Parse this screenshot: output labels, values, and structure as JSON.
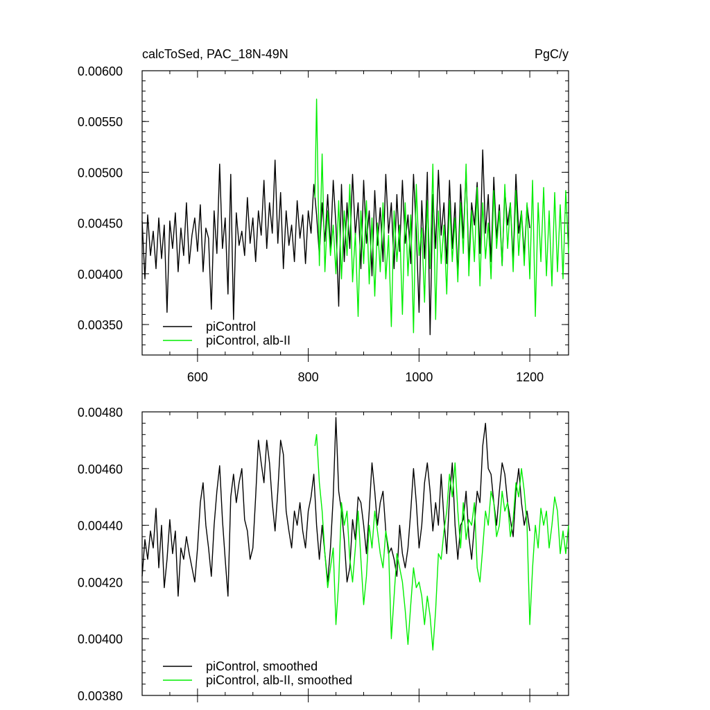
{
  "chart_data": [
    {
      "type": "line",
      "title": "calcToSed, PAC_18N-49N",
      "units": "PgC/y",
      "xlabel": "",
      "ylabel": "",
      "xlim": [
        500,
        1270
      ],
      "ylim": [
        0.0032,
        0.006
      ],
      "xticks": [
        600,
        800,
        1000,
        1200
      ],
      "yticks": [
        0.0035,
        0.004,
        0.0045,
        0.005,
        0.0055,
        0.006
      ],
      "ytick_labels": [
        "0.00350",
        "0.00400",
        "0.00450",
        "0.00500",
        "0.00550",
        "0.00600"
      ],
      "grid": false,
      "legend_position": "bottom-left",
      "series": [
        {
          "name": "piControl",
          "color": "#000000",
          "x": [
            500,
            505,
            510,
            515,
            520,
            525,
            530,
            535,
            540,
            545,
            550,
            555,
            560,
            565,
            570,
            575,
            580,
            585,
            590,
            595,
            600,
            605,
            610,
            615,
            620,
            625,
            630,
            635,
            640,
            645,
            650,
            655,
            660,
            665,
            670,
            675,
            680,
            685,
            690,
            695,
            700,
            705,
            710,
            715,
            720,
            725,
            730,
            735,
            740,
            745,
            750,
            755,
            760,
            765,
            770,
            775,
            780,
            785,
            790,
            795,
            800,
            805,
            810,
            815,
            820,
            825,
            830,
            835,
            840,
            845,
            850,
            855,
            860,
            865,
            870,
            875,
            880,
            885,
            890,
            895,
            900,
            905,
            910,
            915,
            920,
            925,
            930,
            935,
            940,
            945,
            950,
            955,
            960,
            965,
            970,
            975,
            980,
            985,
            990,
            995,
            1000,
            1005,
            1010,
            1015,
            1020,
            1025,
            1030,
            1035,
            1040,
            1045,
            1050,
            1055,
            1060,
            1065,
            1070,
            1075,
            1080,
            1085,
            1090,
            1095,
            1100,
            1105,
            1110,
            1115,
            1120,
            1125,
            1130,
            1135,
            1140,
            1145,
            1150,
            1155,
            1160,
            1165,
            1170,
            1175,
            1180,
            1185,
            1190,
            1195,
            1200
          ],
          "y": [
            0.00452,
            0.00395,
            0.00458,
            0.00418,
            0.00442,
            0.00405,
            0.00455,
            0.00415,
            0.00448,
            0.00362,
            0.00452,
            0.00425,
            0.0046,
            0.00402,
            0.00445,
            0.00418,
            0.0047,
            0.0041,
            0.00438,
            0.00455,
            0.00422,
            0.00468,
            0.00402,
            0.00445,
            0.00435,
            0.00365,
            0.00462,
            0.0042,
            0.00508,
            0.00425,
            0.00455,
            0.0038,
            0.00498,
            0.00355,
            0.0046,
            0.00428,
            0.00442,
            0.00418,
            0.00475,
            0.0043,
            0.00455,
            0.00412,
            0.00462,
            0.00438,
            0.00492,
            0.00425,
            0.0047,
            0.0044,
            0.00512,
            0.0043,
            0.0048,
            0.00405,
            0.00462,
            0.00428,
            0.00448,
            0.00412,
            0.00472,
            0.00435,
            0.00458,
            0.0041,
            0.00462,
            0.0044,
            0.00488,
            0.00458,
            0.00418,
            0.0047,
            0.00432,
            0.00478,
            0.00425,
            0.00492,
            0.00448,
            0.00368,
            0.00488,
            0.00412,
            0.0047,
            0.00425,
            0.00498,
            0.00438,
            0.0047,
            0.00405,
            0.00492,
            0.0043,
            0.00462,
            0.00398,
            0.00482,
            0.00428,
            0.00465,
            0.00412,
            0.00498,
            0.0044,
            0.0047,
            0.00405,
            0.00478,
            0.00422,
            0.00492,
            0.0043,
            0.00458,
            0.0041,
            0.00498,
            0.00442,
            0.00362,
            0.00472,
            0.00415,
            0.005,
            0.0034,
            0.00478,
            0.00425,
            0.00502,
            0.00438,
            0.0047,
            0.0041,
            0.00492,
            0.00425,
            0.0047,
            0.00398,
            0.00488,
            0.00435,
            0.00502,
            0.00412,
            0.0047,
            0.00448,
            0.0049,
            0.0042,
            0.00522,
            0.0044,
            0.00478,
            0.00412,
            0.00495,
            0.00435,
            0.00468,
            0.00408,
            0.00482,
            0.00448,
            0.0047,
            0.00412,
            0.00498,
            0.0044,
            0.00462,
            0.00418,
            0.00468,
            0.00445
          ]
        },
        {
          "name": "piControl, alb-II",
          "color": "#00ee00",
          "x": [
            812,
            815,
            820,
            825,
            830,
            835,
            840,
            845,
            850,
            855,
            860,
            865,
            870,
            875,
            880,
            885,
            890,
            895,
            900,
            905,
            910,
            915,
            920,
            925,
            930,
            935,
            940,
            945,
            950,
            955,
            960,
            965,
            970,
            975,
            980,
            985,
            990,
            995,
            1000,
            1005,
            1010,
            1015,
            1020,
            1025,
            1030,
            1035,
            1040,
            1045,
            1050,
            1055,
            1060,
            1065,
            1070,
            1075,
            1080,
            1085,
            1090,
            1095,
            1100,
            1105,
            1110,
            1115,
            1120,
            1125,
            1130,
            1135,
            1140,
            1145,
            1150,
            1155,
            1160,
            1165,
            1170,
            1175,
            1180,
            1185,
            1190,
            1195,
            1200,
            1205,
            1210,
            1215,
            1220,
            1225,
            1230,
            1235,
            1240,
            1245,
            1250,
            1255,
            1260,
            1265,
            1270
          ],
          "y": [
            0.00475,
            0.00572,
            0.00408,
            0.00518,
            0.00402,
            0.00462,
            0.00418,
            0.00448,
            0.004,
            0.00472,
            0.00395,
            0.00462,
            0.00418,
            0.00488,
            0.00392,
            0.0044,
            0.00358,
            0.00462,
            0.0041,
            0.00472,
            0.0039,
            0.00455,
            0.00378,
            0.0045,
            0.00402,
            0.0047,
            0.00395,
            0.00438,
            0.00348,
            0.00462,
            0.00412,
            0.00448,
            0.0036,
            0.0047,
            0.00398,
            0.00458,
            0.00342,
            0.00488,
            0.00418,
            0.00445,
            0.00372,
            0.00472,
            0.00405,
            0.00508,
            0.00355,
            0.00462,
            0.0041,
            0.00448,
            0.0038,
            0.00472,
            0.00412,
            0.00455,
            0.00392,
            0.0047,
            0.0042,
            0.00508,
            0.00398,
            0.00462,
            0.00412,
            0.00485,
            0.00388,
            0.0047,
            0.00415,
            0.0045,
            0.00395,
            0.00482,
            0.00425,
            0.00462,
            0.00408,
            0.00488,
            0.00425,
            0.0047,
            0.00402,
            0.00482,
            0.00418,
            0.00462,
            0.00408,
            0.0047,
            0.00395,
            0.00492,
            0.00358,
            0.0047,
            0.00412,
            0.00485,
            0.00398,
            0.00462,
            0.00388,
            0.0048,
            0.00402,
            0.00468,
            0.00395,
            0.00482,
            0.0042
          ]
        }
      ]
    },
    {
      "type": "line",
      "title": "",
      "units": "",
      "xlabel": "",
      "ylabel": "",
      "xlim": [
        500,
        1270
      ],
      "ylim": [
        0.0038,
        0.0048
      ],
      "xticks": [
        600,
        800,
        1000,
        1200
      ],
      "yticks": [
        0.0038,
        0.004,
        0.0042,
        0.0044,
        0.0046,
        0.0048
      ],
      "ytick_labels": [
        "0.00380",
        "0.00400",
        "0.00420",
        "0.00440",
        "0.00460",
        "0.00480"
      ],
      "grid": false,
      "legend_position": "bottom-left",
      "series": [
        {
          "name": "piControl, smoothed",
          "color": "#000000",
          "x": [
            500,
            505,
            510,
            515,
            520,
            525,
            530,
            535,
            540,
            545,
            550,
            555,
            560,
            565,
            570,
            575,
            580,
            585,
            590,
            595,
            600,
            605,
            610,
            615,
            620,
            625,
            630,
            635,
            640,
            645,
            650,
            655,
            660,
            665,
            670,
            675,
            680,
            685,
            690,
            695,
            700,
            705,
            710,
            715,
            720,
            725,
            730,
            735,
            740,
            745,
            750,
            755,
            760,
            765,
            770,
            775,
            780,
            785,
            790,
            795,
            800,
            805,
            810,
            815,
            820,
            825,
            830,
            835,
            840,
            845,
            850,
            855,
            860,
            865,
            870,
            875,
            880,
            885,
            890,
            895,
            900,
            905,
            910,
            915,
            920,
            925,
            930,
            935,
            940,
            945,
            950,
            955,
            960,
            965,
            970,
            975,
            980,
            985,
            990,
            995,
            1000,
            1005,
            1010,
            1015,
            1020,
            1025,
            1030,
            1035,
            1040,
            1045,
            1050,
            1055,
            1060,
            1065,
            1070,
            1075,
            1080,
            1085,
            1090,
            1095,
            1100,
            1105,
            1110,
            1115,
            1120,
            1125,
            1130,
            1135,
            1140,
            1145,
            1150,
            1155,
            1160,
            1165,
            1170,
            1175,
            1180,
            1185,
            1190,
            1195,
            1200
          ],
          "y": [
            0.00422,
            0.00435,
            0.00428,
            0.00438,
            0.00432,
            0.00446,
            0.00425,
            0.0044,
            0.00418,
            0.00428,
            0.00442,
            0.0043,
            0.00438,
            0.00415,
            0.00432,
            0.00428,
            0.00436,
            0.0043,
            0.00425,
            0.0042,
            0.00432,
            0.00448,
            0.00455,
            0.0044,
            0.00432,
            0.00422,
            0.0044,
            0.00452,
            0.00461,
            0.00442,
            0.00428,
            0.00415,
            0.0045,
            0.00458,
            0.00448,
            0.00455,
            0.0046,
            0.00442,
            0.00438,
            0.00428,
            0.00432,
            0.0045,
            0.0047,
            0.00462,
            0.00455,
            0.0047,
            0.00462,
            0.00448,
            0.00438,
            0.00452,
            0.0047,
            0.00465,
            0.00445,
            0.00438,
            0.00432,
            0.00445,
            0.0044,
            0.00448,
            0.00438,
            0.00432,
            0.00445,
            0.0045,
            0.00458,
            0.0044,
            0.00428,
            0.0044,
            0.0043,
            0.0042,
            0.00432,
            0.0045,
            0.00478,
            0.00452,
            0.00445,
            0.00435,
            0.0042,
            0.00425,
            0.00442,
            0.00435,
            0.0045,
            0.00448,
            0.0044,
            0.0043,
            0.00445,
            0.00462,
            0.00452,
            0.0044,
            0.00448,
            0.00452,
            0.00438,
            0.0043,
            0.00432,
            0.00428,
            0.00422,
            0.0044,
            0.0043,
            0.00425,
            0.00432,
            0.00445,
            0.0046,
            0.00448,
            0.00432,
            0.0044,
            0.00455,
            0.00462,
            0.00452,
            0.00438,
            0.00448,
            0.0044,
            0.00458,
            0.00442,
            0.0043,
            0.0045,
            0.00462,
            0.0044,
            0.00428,
            0.0044,
            0.00442,
            0.00452,
            0.00436,
            0.00428,
            0.0044,
            0.00452,
            0.00448,
            0.00468,
            0.00476,
            0.0046,
            0.00458,
            0.00448,
            0.0044,
            0.00452,
            0.00462,
            0.00458,
            0.00448,
            0.00442,
            0.00436,
            0.00452,
            0.0046,
            0.00448,
            0.0044,
            0.00445,
            0.00438
          ]
        },
        {
          "name": "piControl, alb-II, smoothed",
          "color": "#00ee00",
          "x": [
            812,
            815,
            820,
            825,
            830,
            835,
            840,
            845,
            850,
            855,
            860,
            865,
            870,
            875,
            880,
            885,
            890,
            895,
            900,
            905,
            910,
            915,
            920,
            925,
            930,
            935,
            940,
            945,
            950,
            955,
            960,
            965,
            970,
            975,
            980,
            985,
            990,
            995,
            1000,
            1005,
            1010,
            1015,
            1020,
            1025,
            1030,
            1035,
            1040,
            1045,
            1050,
            1055,
            1060,
            1065,
            1070,
            1075,
            1080,
            1085,
            1090,
            1095,
            1100,
            1105,
            1110,
            1115,
            1120,
            1125,
            1130,
            1135,
            1140,
            1145,
            1150,
            1155,
            1160,
            1165,
            1170,
            1175,
            1180,
            1185,
            1190,
            1195,
            1200,
            1205,
            1210,
            1215,
            1220,
            1225,
            1230,
            1235,
            1240,
            1245,
            1250,
            1255,
            1260,
            1265,
            1270
          ],
          "y": [
            0.00468,
            0.00472,
            0.00455,
            0.00445,
            0.0043,
            0.00418,
            0.00425,
            0.00432,
            0.00405,
            0.0042,
            0.00448,
            0.0044,
            0.00445,
            0.00428,
            0.0042,
            0.00432,
            0.00445,
            0.00428,
            0.00412,
            0.00422,
            0.0044,
            0.00432,
            0.00445,
            0.00438,
            0.0043,
            0.00425,
            0.00438,
            0.00432,
            0.004,
            0.00415,
            0.0043,
            0.00425,
            0.0042,
            0.0041,
            0.00398,
            0.00412,
            0.00425,
            0.00418,
            0.0042,
            0.00415,
            0.00405,
            0.00415,
            0.00408,
            0.00396,
            0.0041,
            0.0043,
            0.00428,
            0.00438,
            0.00445,
            0.00458,
            0.0045,
            0.00462,
            0.00445,
            0.00432,
            0.00448,
            0.00435,
            0.00442,
            0.0044,
            0.00448,
            0.00425,
            0.0042,
            0.00432,
            0.00445,
            0.0044,
            0.00452,
            0.00448,
            0.00436,
            0.0044,
            0.00452,
            0.00445,
            0.00448,
            0.00436,
            0.00442,
            0.00455,
            0.0045,
            0.0046,
            0.00452,
            0.0044,
            0.00405,
            0.00425,
            0.0044,
            0.00432,
            0.00446,
            0.0044,
            0.00445,
            0.00432,
            0.0044,
            0.0045,
            0.00445,
            0.0043,
            0.00438,
            0.0043,
            0.0044
          ]
        }
      ]
    }
  ]
}
